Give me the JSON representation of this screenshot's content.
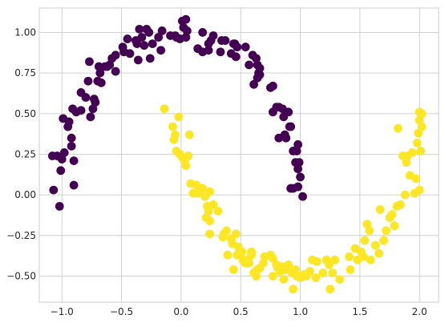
{
  "chart_data": {
    "type": "scatter",
    "title": "",
    "xlabel": "",
    "ylabel": "",
    "xlim": [
      -1.19,
      2.16
    ],
    "ylim": [
      -0.66,
      1.15
    ],
    "grid": true,
    "xticks": [
      -1.0,
      -0.5,
      0.0,
      0.5,
      1.0,
      1.5,
      2.0
    ],
    "xtick_labels": [
      "−1.0",
      "−0.5",
      "0.0",
      "0.5",
      "1.0",
      "1.5",
      "2.0"
    ],
    "yticks": [
      -0.5,
      -0.25,
      0.0,
      0.25,
      0.5,
      0.75,
      1.0
    ],
    "ytick_labels": [
      "−0.50",
      "−0.25",
      "0.00",
      "0.25",
      "0.50",
      "0.75",
      "1.00"
    ],
    "series": [
      {
        "color": "#440154",
        "points": [
          [
            -1.08,
            0.24
          ],
          [
            -1.07,
            0.03
          ],
          [
            -1.04,
            0.24
          ],
          [
            -1.02,
            -0.07
          ],
          [
            -1.01,
            0.15
          ],
          [
            -1.0,
            0.22
          ],
          [
            -0.99,
            0.47
          ],
          [
            -0.98,
            0.26
          ],
          [
            -0.95,
            0.42
          ],
          [
            -0.94,
            0.45
          ],
          [
            -0.92,
            0.35
          ],
          [
            -0.92,
            0.3
          ],
          [
            -0.91,
            0.53
          ],
          [
            -0.9,
            0.06
          ],
          [
            -0.9,
            0.21
          ],
          [
            -0.88,
            0.51
          ],
          [
            -0.84,
            0.52
          ],
          [
            -0.84,
            0.63
          ],
          [
            -0.8,
            0.6
          ],
          [
            -0.78,
            0.7
          ],
          [
            -0.77,
            0.82
          ],
          [
            -0.76,
            0.48
          ],
          [
            -0.74,
            0.53
          ],
          [
            -0.73,
            0.59
          ],
          [
            -0.72,
            0.57
          ],
          [
            -0.7,
            0.7
          ],
          [
            -0.69,
            0.79
          ],
          [
            -0.68,
            0.75
          ],
          [
            -0.67,
            0.69
          ],
          [
            -0.64,
            0.79
          ],
          [
            -0.62,
            0.79
          ],
          [
            -0.6,
            0.8
          ],
          [
            -0.58,
            0.84
          ],
          [
            -0.55,
            0.76
          ],
          [
            -0.55,
            0.86
          ],
          [
            -0.49,
            0.91
          ],
          [
            -0.48,
            0.88
          ],
          [
            -0.45,
            0.96
          ],
          [
            -0.43,
            0.87
          ],
          [
            -0.38,
            0.95
          ],
          [
            -0.37,
            0.93
          ],
          [
            -0.36,
            0.83
          ],
          [
            -0.35,
            1.02
          ],
          [
            -0.33,
            0.97
          ],
          [
            -0.31,
            0.92
          ],
          [
            -0.29,
            1.02
          ],
          [
            -0.27,
            1.0
          ],
          [
            -0.26,
            0.84
          ],
          [
            -0.24,
            0.93
          ],
          [
            -0.19,
            0.97
          ],
          [
            -0.17,
            0.89
          ],
          [
            -0.16,
            1.01
          ],
          [
            -0.09,
            0.98
          ],
          [
            -0.05,
            0.98
          ],
          [
            -0.04,
            0.97
          ],
          [
            -0.01,
            0.96
          ],
          [
            0.01,
            1.07
          ],
          [
            0.02,
            1.03
          ],
          [
            0.04,
            0.97
          ],
          [
            0.04,
            1.08
          ],
          [
            0.05,
            1.01
          ],
          [
            0.14,
            0.9
          ],
          [
            0.18,
            0.88
          ],
          [
            0.18,
            1.0
          ],
          [
            0.23,
            0.93
          ],
          [
            0.23,
            0.89
          ],
          [
            0.25,
            0.95
          ],
          [
            0.27,
            0.98
          ],
          [
            0.33,
            0.88
          ],
          [
            0.34,
            0.95
          ],
          [
            0.37,
            0.95
          ],
          [
            0.42,
            0.87
          ],
          [
            0.44,
            0.93
          ],
          [
            0.45,
            0.93
          ],
          [
            0.46,
            0.85
          ],
          [
            0.47,
            0.91
          ],
          [
            0.54,
            0.91
          ],
          [
            0.57,
            0.8
          ],
          [
            0.6,
            0.86
          ],
          [
            0.61,
            0.68
          ],
          [
            0.63,
            0.84
          ],
          [
            0.64,
            0.8
          ],
          [
            0.64,
            0.72
          ],
          [
            0.65,
            0.75
          ],
          [
            0.66,
            0.74
          ],
          [
            0.66,
            0.78
          ],
          [
            0.75,
            0.66
          ],
          [
            0.77,
            0.67
          ],
          [
            0.77,
            0.51
          ],
          [
            0.8,
            0.54
          ],
          [
            0.82,
            0.54
          ],
          [
            0.82,
            0.35
          ],
          [
            0.85,
            0.53
          ],
          [
            0.86,
            0.48
          ],
          [
            0.87,
            0.37
          ],
          [
            0.88,
            0.35
          ],
          [
            0.9,
            0.51
          ],
          [
            0.91,
            0.42
          ],
          [
            0.92,
            0.42
          ],
          [
            0.92,
            0.04
          ],
          [
            0.94,
            0.04
          ],
          [
            0.94,
            0.27
          ],
          [
            0.96,
            0.2
          ],
          [
            0.97,
            0.27
          ],
          [
            0.98,
            0.16
          ],
          [
            0.98,
            0.31
          ],
          [
            0.98,
            0.05
          ],
          [
            0.99,
            0.2
          ],
          [
            1.0,
            0.11
          ],
          [
            1.02,
            -0.01
          ]
        ]
      },
      {
        "color": "#fde725",
        "points": [
          [
            -0.14,
            0.53
          ],
          [
            -0.07,
            0.42
          ],
          [
            -0.06,
            0.34
          ],
          [
            -0.05,
            0.37
          ],
          [
            -0.04,
            0.27
          ],
          [
            -0.02,
            0.48
          ],
          [
            -0.01,
            0.25
          ],
          [
            0.01,
            0.23
          ],
          [
            0.03,
            0.21
          ],
          [
            0.04,
            0.18
          ],
          [
            0.06,
            0.24
          ],
          [
            0.07,
            0.37
          ],
          [
            0.08,
            0.07
          ],
          [
            0.1,
            0.01
          ],
          [
            0.13,
            0.06
          ],
          [
            0.14,
            0.01
          ],
          [
            0.17,
            0.04
          ],
          [
            0.18,
            0.04
          ],
          [
            0.2,
            -0.01
          ],
          [
            0.21,
            -0.14
          ],
          [
            0.22,
            -0.07
          ],
          [
            0.23,
            -0.1
          ],
          [
            0.24,
            -0.16
          ],
          [
            0.24,
            -0.24
          ],
          [
            0.24,
            0.02
          ],
          [
            0.27,
            -0.06
          ],
          [
            0.31,
            -0.1
          ],
          [
            0.35,
            -0.26
          ],
          [
            0.36,
            -0.24
          ],
          [
            0.38,
            -0.22
          ],
          [
            0.39,
            -0.37
          ],
          [
            0.42,
            -0.27
          ],
          [
            0.43,
            -0.3
          ],
          [
            0.44,
            -0.46
          ],
          [
            0.46,
            -0.24
          ],
          [
            0.47,
            -0.37
          ],
          [
            0.48,
            -0.32
          ],
          [
            0.51,
            -0.35
          ],
          [
            0.52,
            -0.4
          ],
          [
            0.54,
            -0.42
          ],
          [
            0.56,
            -0.4
          ],
          [
            0.57,
            -0.42
          ],
          [
            0.59,
            -0.35
          ],
          [
            0.59,
            -0.37
          ],
          [
            0.61,
            -0.48
          ],
          [
            0.63,
            -0.5
          ],
          [
            0.64,
            -0.46
          ],
          [
            0.66,
            -0.45
          ],
          [
            0.69,
            -0.42
          ],
          [
            0.7,
            -0.38
          ],
          [
            0.75,
            -0.37
          ],
          [
            0.77,
            -0.5
          ],
          [
            0.77,
            -0.39
          ],
          [
            0.8,
            -0.43
          ],
          [
            0.81,
            -0.45
          ],
          [
            0.83,
            -0.47
          ],
          [
            0.84,
            -0.44
          ],
          [
            0.86,
            -0.52
          ],
          [
            0.88,
            -0.46
          ],
          [
            0.9,
            -0.43
          ],
          [
            0.93,
            -0.48
          ],
          [
            0.94,
            -0.58
          ],
          [
            0.96,
            -0.46
          ],
          [
            0.97,
            -0.5
          ],
          [
            1.0,
            -0.51
          ],
          [
            1.03,
            -0.49
          ],
          [
            1.05,
            -0.5
          ],
          [
            1.08,
            -0.47
          ],
          [
            1.1,
            -0.4
          ],
          [
            1.13,
            -0.51
          ],
          [
            1.14,
            -0.41
          ],
          [
            1.19,
            -0.48
          ],
          [
            1.22,
            -0.4
          ],
          [
            1.24,
            -0.43
          ],
          [
            1.25,
            -0.58
          ],
          [
            1.27,
            -0.48
          ],
          [
            1.29,
            -0.4
          ],
          [
            1.33,
            -0.52
          ],
          [
            1.41,
            -0.38
          ],
          [
            1.42,
            -0.46
          ],
          [
            1.46,
            -0.33
          ],
          [
            1.48,
            -0.4
          ],
          [
            1.51,
            -0.35
          ],
          [
            1.53,
            -0.38
          ],
          [
            1.54,
            -0.28
          ],
          [
            1.56,
            -0.18
          ],
          [
            1.58,
            -0.22
          ],
          [
            1.59,
            -0.4
          ],
          [
            1.63,
            -0.31
          ],
          [
            1.66,
            -0.36
          ],
          [
            1.67,
            -0.09
          ],
          [
            1.7,
            -0.28
          ],
          [
            1.72,
            -0.22
          ],
          [
            1.75,
            -0.14
          ],
          [
            1.77,
            -0.12
          ],
          [
            1.79,
            -0.19
          ],
          [
            1.81,
            -0.07
          ],
          [
            1.82,
            0.41
          ],
          [
            1.84,
            -0.06
          ],
          [
            1.86,
            0.24
          ],
          [
            1.88,
            0.0
          ],
          [
            1.89,
            0.2
          ],
          [
            1.9,
            0.24
          ],
          [
            1.92,
            0.12
          ],
          [
            1.94,
            0.26
          ],
          [
            1.96,
            0.01
          ],
          [
            1.97,
            0.1
          ],
          [
            1.98,
            0.32
          ],
          [
            1.99,
            0.38
          ],
          [
            2.0,
            0.46
          ],
          [
            2.0,
            0.03
          ],
          [
            2.0,
            0.51
          ],
          [
            2.01,
            0.27
          ],
          [
            2.02,
            0.5
          ],
          [
            2.02,
            0.42
          ]
        ]
      }
    ]
  }
}
